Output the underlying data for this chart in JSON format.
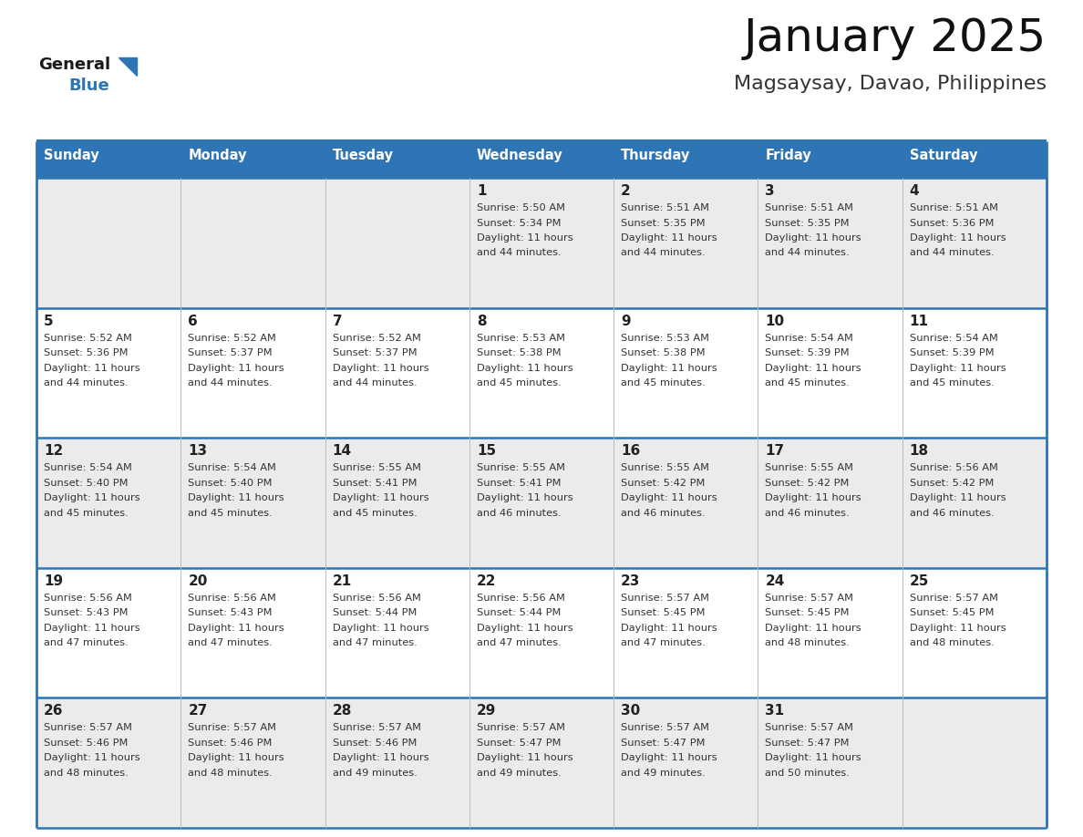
{
  "title": "January 2025",
  "subtitle": "Magsaysay, Davao, Philippines",
  "days_of_week": [
    "Sunday",
    "Monday",
    "Tuesday",
    "Wednesday",
    "Thursday",
    "Friday",
    "Saturday"
  ],
  "header_bg": "#2E75B6",
  "header_text": "#FFFFFF",
  "cell_bg_light": "#EBEBEB",
  "cell_bg_white": "#FFFFFF",
  "day_num_color": "#222222",
  "text_color": "#333333",
  "border_color": "#2E75B6",
  "title_color": "#111111",
  "subtitle_color": "#333333",
  "logo_general_color": "#1a1a1a",
  "logo_blue_color": "#2E75B6",
  "calendar": [
    [
      {
        "day": null,
        "sunrise": null,
        "sunset": null,
        "daylight": null
      },
      {
        "day": null,
        "sunrise": null,
        "sunset": null,
        "daylight": null
      },
      {
        "day": null,
        "sunrise": null,
        "sunset": null,
        "daylight": null
      },
      {
        "day": 1,
        "sunrise": "5:50 AM",
        "sunset": "5:34 PM",
        "daylight": "11 hours and 44 minutes."
      },
      {
        "day": 2,
        "sunrise": "5:51 AM",
        "sunset": "5:35 PM",
        "daylight": "11 hours and 44 minutes."
      },
      {
        "day": 3,
        "sunrise": "5:51 AM",
        "sunset": "5:35 PM",
        "daylight": "11 hours and 44 minutes."
      },
      {
        "day": 4,
        "sunrise": "5:51 AM",
        "sunset": "5:36 PM",
        "daylight": "11 hours and 44 minutes."
      }
    ],
    [
      {
        "day": 5,
        "sunrise": "5:52 AM",
        "sunset": "5:36 PM",
        "daylight": "11 hours and 44 minutes."
      },
      {
        "day": 6,
        "sunrise": "5:52 AM",
        "sunset": "5:37 PM",
        "daylight": "11 hours and 44 minutes."
      },
      {
        "day": 7,
        "sunrise": "5:52 AM",
        "sunset": "5:37 PM",
        "daylight": "11 hours and 44 minutes."
      },
      {
        "day": 8,
        "sunrise": "5:53 AM",
        "sunset": "5:38 PM",
        "daylight": "11 hours and 45 minutes."
      },
      {
        "day": 9,
        "sunrise": "5:53 AM",
        "sunset": "5:38 PM",
        "daylight": "11 hours and 45 minutes."
      },
      {
        "day": 10,
        "sunrise": "5:54 AM",
        "sunset": "5:39 PM",
        "daylight": "11 hours and 45 minutes."
      },
      {
        "day": 11,
        "sunrise": "5:54 AM",
        "sunset": "5:39 PM",
        "daylight": "11 hours and 45 minutes."
      }
    ],
    [
      {
        "day": 12,
        "sunrise": "5:54 AM",
        "sunset": "5:40 PM",
        "daylight": "11 hours and 45 minutes."
      },
      {
        "day": 13,
        "sunrise": "5:54 AM",
        "sunset": "5:40 PM",
        "daylight": "11 hours and 45 minutes."
      },
      {
        "day": 14,
        "sunrise": "5:55 AM",
        "sunset": "5:41 PM",
        "daylight": "11 hours and 45 minutes."
      },
      {
        "day": 15,
        "sunrise": "5:55 AM",
        "sunset": "5:41 PM",
        "daylight": "11 hours and 46 minutes."
      },
      {
        "day": 16,
        "sunrise": "5:55 AM",
        "sunset": "5:42 PM",
        "daylight": "11 hours and 46 minutes."
      },
      {
        "day": 17,
        "sunrise": "5:55 AM",
        "sunset": "5:42 PM",
        "daylight": "11 hours and 46 minutes."
      },
      {
        "day": 18,
        "sunrise": "5:56 AM",
        "sunset": "5:42 PM",
        "daylight": "11 hours and 46 minutes."
      }
    ],
    [
      {
        "day": 19,
        "sunrise": "5:56 AM",
        "sunset": "5:43 PM",
        "daylight": "11 hours and 47 minutes."
      },
      {
        "day": 20,
        "sunrise": "5:56 AM",
        "sunset": "5:43 PM",
        "daylight": "11 hours and 47 minutes."
      },
      {
        "day": 21,
        "sunrise": "5:56 AM",
        "sunset": "5:44 PM",
        "daylight": "11 hours and 47 minutes."
      },
      {
        "day": 22,
        "sunrise": "5:56 AM",
        "sunset": "5:44 PM",
        "daylight": "11 hours and 47 minutes."
      },
      {
        "day": 23,
        "sunrise": "5:57 AM",
        "sunset": "5:45 PM",
        "daylight": "11 hours and 47 minutes."
      },
      {
        "day": 24,
        "sunrise": "5:57 AM",
        "sunset": "5:45 PM",
        "daylight": "11 hours and 48 minutes."
      },
      {
        "day": 25,
        "sunrise": "5:57 AM",
        "sunset": "5:45 PM",
        "daylight": "11 hours and 48 minutes."
      }
    ],
    [
      {
        "day": 26,
        "sunrise": "5:57 AM",
        "sunset": "5:46 PM",
        "daylight": "11 hours and 48 minutes."
      },
      {
        "day": 27,
        "sunrise": "5:57 AM",
        "sunset": "5:46 PM",
        "daylight": "11 hours and 48 minutes."
      },
      {
        "day": 28,
        "sunrise": "5:57 AM",
        "sunset": "5:46 PM",
        "daylight": "11 hours and 49 minutes."
      },
      {
        "day": 29,
        "sunrise": "5:57 AM",
        "sunset": "5:47 PM",
        "daylight": "11 hours and 49 minutes."
      },
      {
        "day": 30,
        "sunrise": "5:57 AM",
        "sunset": "5:47 PM",
        "daylight": "11 hours and 49 minutes."
      },
      {
        "day": 31,
        "sunrise": "5:57 AM",
        "sunset": "5:47 PM",
        "daylight": "11 hours and 50 minutes."
      },
      {
        "day": null,
        "sunrise": null,
        "sunset": null,
        "daylight": null
      }
    ]
  ]
}
